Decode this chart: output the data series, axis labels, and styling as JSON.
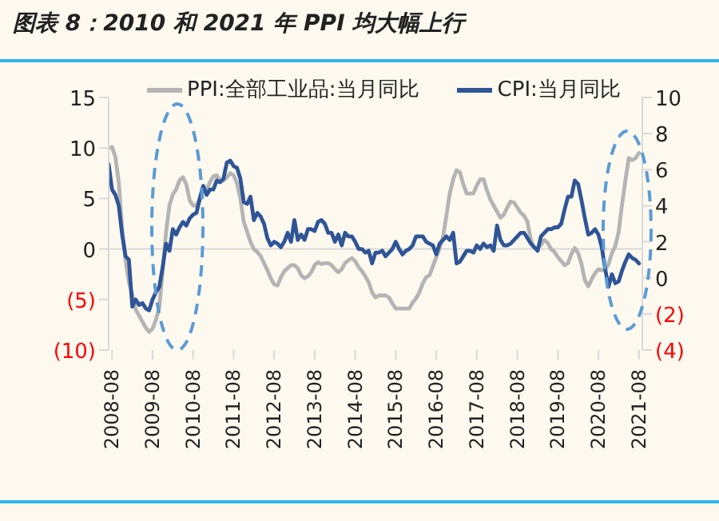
{
  "chart_data": {
    "type": "line",
    "title": "图表 8：2010 和 2021 年 PPI 均大幅上行",
    "x": [
      "2008-07",
      "2008-08",
      "2008-09",
      "2008-10",
      "2008-11",
      "2008-12",
      "2009-01",
      "2009-02",
      "2009-03",
      "2009-04",
      "2009-05",
      "2009-06",
      "2009-07",
      "2009-08",
      "2009-09",
      "2009-10",
      "2009-11",
      "2009-12",
      "2010-01",
      "2010-02",
      "2010-03",
      "2010-04",
      "2010-05",
      "2010-06",
      "2010-07",
      "2010-08",
      "2010-09",
      "2010-10",
      "2010-11",
      "2010-12",
      "2011-01",
      "2011-02",
      "2011-03",
      "2011-04",
      "2011-05",
      "2011-06",
      "2011-07",
      "2011-08",
      "2011-09",
      "2011-10",
      "2011-11",
      "2011-12",
      "2012-01",
      "2012-02",
      "2012-03",
      "2012-04",
      "2012-05",
      "2012-06",
      "2012-07",
      "2012-08",
      "2012-09",
      "2012-10",
      "2012-11",
      "2012-12",
      "2013-01",
      "2013-02",
      "2013-03",
      "2013-04",
      "2013-05",
      "2013-06",
      "2013-07",
      "2013-08",
      "2013-09",
      "2013-10",
      "2013-11",
      "2013-12",
      "2014-01",
      "2014-02",
      "2014-03",
      "2014-04",
      "2014-05",
      "2014-06",
      "2014-07",
      "2014-08",
      "2014-09",
      "2014-10",
      "2014-11",
      "2014-12",
      "2015-01",
      "2015-02",
      "2015-03",
      "2015-04",
      "2015-05",
      "2015-06",
      "2015-07",
      "2015-08",
      "2015-09",
      "2015-10",
      "2015-11",
      "2015-12",
      "2016-01",
      "2016-02",
      "2016-03",
      "2016-04",
      "2016-05",
      "2016-06",
      "2016-07",
      "2016-08",
      "2016-09",
      "2016-10",
      "2016-11",
      "2016-12",
      "2017-01",
      "2017-02",
      "2017-03",
      "2017-04",
      "2017-05",
      "2017-06",
      "2017-07",
      "2017-08",
      "2017-09",
      "2017-10",
      "2017-11",
      "2017-12",
      "2018-01",
      "2018-02",
      "2018-03",
      "2018-04",
      "2018-05",
      "2018-06",
      "2018-07",
      "2018-08",
      "2018-09",
      "2018-10",
      "2018-11",
      "2018-12",
      "2019-01",
      "2019-02",
      "2019-03",
      "2019-04",
      "2019-05",
      "2019-06",
      "2019-07",
      "2019-08",
      "2019-09",
      "2019-10",
      "2019-11",
      "2019-12",
      "2020-01",
      "2020-02",
      "2020-03",
      "2020-04",
      "2020-05",
      "2020-06",
      "2020-07",
      "2020-08",
      "2020-09",
      "2020-10",
      "2020-11",
      "2020-12",
      "2021-01",
      "2021-02",
      "2021-03",
      "2021-04",
      "2021-05",
      "2021-06",
      "2021-07",
      "2021-08"
    ],
    "series": [
      {
        "name": "PPI:全部工业品:当月同比",
        "color": "#b4b4b4",
        "values": [
          10.0,
          10.1,
          9.1,
          6.6,
          2.0,
          -1.1,
          -3.3,
          -4.5,
          -6.0,
          -6.6,
          -7.2,
          -7.8,
          -8.2,
          -7.9,
          -7.0,
          -5.8,
          -2.1,
          1.7,
          4.3,
          5.4,
          5.9,
          6.8,
          7.1,
          6.4,
          4.8,
          4.3,
          4.3,
          5.0,
          6.1,
          5.9,
          6.6,
          7.2,
          7.3,
          6.8,
          6.8,
          7.1,
          7.5,
          7.3,
          6.5,
          5.0,
          2.7,
          1.7,
          0.7,
          0.0,
          -0.3,
          -0.7,
          -1.4,
          -2.1,
          -2.9,
          -3.5,
          -3.6,
          -2.8,
          -2.2,
          -1.9,
          -1.6,
          -1.6,
          -1.9,
          -2.6,
          -2.9,
          -2.7,
          -2.3,
          -1.6,
          -1.3,
          -1.5,
          -1.4,
          -1.4,
          -1.6,
          -2.0,
          -2.3,
          -2.0,
          -1.4,
          -1.1,
          -0.9,
          -1.2,
          -1.8,
          -2.2,
          -2.7,
          -3.3,
          -4.3,
          -4.8,
          -4.6,
          -4.6,
          -4.6,
          -4.8,
          -5.4,
          -5.9,
          -5.9,
          -5.9,
          -5.9,
          -5.9,
          -5.3,
          -4.9,
          -4.3,
          -3.4,
          -2.8,
          -2.6,
          -1.7,
          -0.8,
          0.1,
          1.2,
          3.3,
          5.5,
          6.9,
          7.8,
          7.6,
          6.4,
          5.5,
          5.5,
          5.5,
          6.3,
          6.9,
          6.9,
          5.8,
          4.9,
          4.3,
          3.7,
          3.1,
          3.4,
          4.1,
          4.7,
          4.6,
          4.1,
          3.6,
          3.3,
          2.7,
          0.9,
          0.1,
          0.1,
          0.4,
          0.9,
          0.6,
          0.0,
          -0.3,
          -0.8,
          -1.2,
          -1.6,
          -1.4,
          -0.5,
          0.1,
          -0.4,
          -1.5,
          -3.1,
          -3.7,
          -3.0,
          -2.4,
          -2.0,
          -2.1,
          -2.1,
          -1.5,
          -0.4,
          0.3,
          1.7,
          4.4,
          6.8,
          9.0,
          8.8,
          9.0,
          9.5
        ]
      },
      {
        "name": "CPI:当月同比",
        "color": "#2f5597",
        "axis": "y2",
        "values": [
          6.3,
          4.9,
          4.6,
          4.0,
          2.4,
          1.2,
          1.0,
          -1.6,
          -1.2,
          -1.5,
          -1.4,
          -1.7,
          -1.8,
          -1.2,
          -0.8,
          -0.5,
          0.6,
          1.9,
          1.5,
          2.7,
          2.4,
          2.8,
          3.1,
          2.9,
          3.3,
          3.5,
          3.6,
          4.4,
          5.1,
          4.6,
          4.9,
          4.9,
          5.4,
          5.3,
          5.5,
          6.4,
          6.5,
          6.2,
          6.1,
          5.5,
          4.2,
          4.1,
          4.5,
          3.2,
          3.6,
          3.4,
          3.0,
          2.2,
          1.8,
          2.0,
          1.9,
          1.7,
          2.0,
          2.5,
          2.0,
          3.2,
          2.1,
          2.4,
          2.1,
          2.7,
          2.7,
          2.6,
          3.1,
          3.2,
          3.0,
          2.5,
          2.5,
          2.0,
          2.4,
          1.8,
          2.5,
          2.3,
          2.3,
          2.0,
          1.6,
          1.6,
          1.4,
          1.5,
          0.8,
          1.4,
          1.4,
          1.5,
          1.2,
          1.4,
          1.6,
          2.0,
          1.6,
          1.3,
          1.5,
          1.6,
          1.8,
          2.3,
          2.3,
          2.3,
          2.0,
          1.9,
          1.8,
          1.3,
          1.9,
          2.1,
          2.3,
          2.1,
          2.5,
          0.8,
          0.9,
          1.2,
          1.5,
          1.5,
          1.4,
          1.8,
          1.6,
          1.9,
          1.7,
          1.8,
          1.5,
          2.9,
          2.1,
          1.8,
          1.8,
          1.9,
          2.1,
          2.3,
          2.5,
          2.5,
          2.2,
          1.9,
          1.7,
          1.5,
          2.3,
          2.5,
          2.7,
          2.7,
          2.8,
          2.8,
          3.0,
          3.8,
          4.5,
          4.5,
          5.4,
          5.2,
          4.3,
          3.3,
          2.4,
          2.5,
          2.7,
          2.4,
          1.7,
          0.5,
          -0.5,
          0.2,
          -0.3,
          -0.2,
          0.4,
          0.9,
          1.3,
          1.1,
          1.0,
          0.8
        ]
      }
    ],
    "xlim": [
      "2008-07",
      "2021-09"
    ],
    "xticks": [
      "2008-08",
      "2009-08",
      "2010-08",
      "2011-08",
      "2012-08",
      "2013-08",
      "2014-08",
      "2015-08",
      "2016-08",
      "2017-08",
      "2018-08",
      "2019-08",
      "2020-08",
      "2021-08"
    ],
    "ylim": [
      -10,
      15
    ],
    "yticks": [
      {
        "value": -10,
        "label": "(10)"
      },
      {
        "value": -5,
        "label": "(5)"
      },
      0,
      5,
      10,
      15
    ],
    "y2lim": [
      -4,
      10
    ],
    "y2ticks": [
      {
        "value": -4,
        "label": "(4)"
      },
      {
        "value": -2,
        "label": "(2)"
      },
      0,
      2,
      4,
      6,
      8,
      10
    ],
    "ref_lines": [
      {
        "axis": "y",
        "value": 0,
        "color": "#d9d9d9"
      }
    ],
    "grid": false,
    "legend": "top",
    "marker": "none",
    "line_style": "solid"
  }
}
